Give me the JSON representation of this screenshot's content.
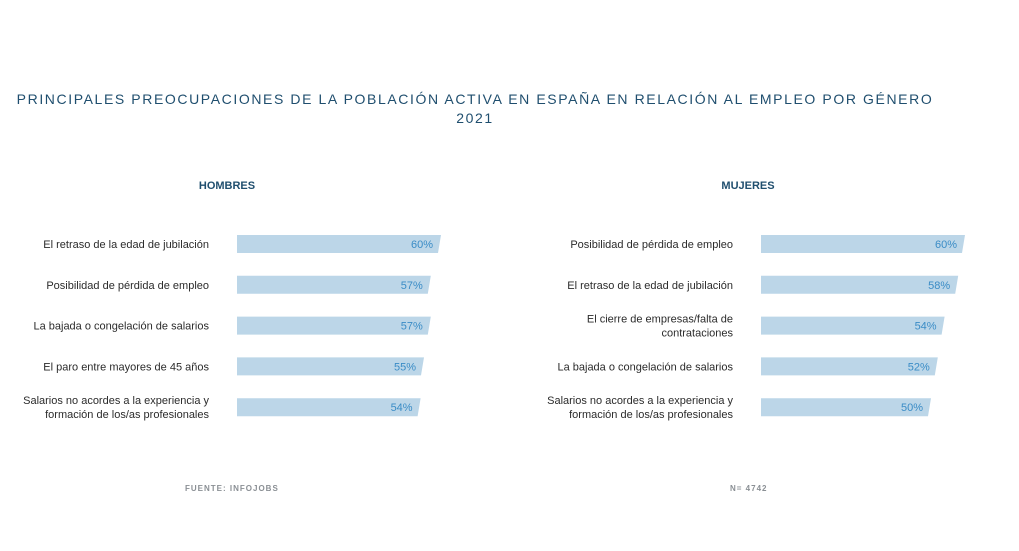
{
  "title_line1": "PRINCIPALES PREOCUPACIONES DE LA POBLACIÓN ACTIVA EN ESPAÑA EN RELACIÓN AL EMPLEO POR GÉNERO",
  "title_line2": "2021",
  "source": "FUENTE: INFOJOBS",
  "sample": "N= 4742",
  "colors": {
    "bar": "#bcd6e8",
    "value_text": "#3a8cc6",
    "title": "#1f4e6e"
  },
  "chart_data": [
    {
      "type": "bar",
      "orientation": "horizontal",
      "title": "HOMBRES",
      "categories": [
        [
          "El retraso de la edad de jubilación"
        ],
        [
          "Posibilidad de pérdida de empleo"
        ],
        [
          "La bajada o congelación de salarios"
        ],
        [
          "El paro entre mayores de 45 años"
        ],
        [
          "Salarios no acordes a la experiencia y",
          "formación de los/as profesionales"
        ]
      ],
      "values": [
        60,
        57,
        57,
        55,
        54
      ],
      "value_labels": [
        "60%",
        "57%",
        "57%",
        "55%",
        "54%"
      ],
      "unit": "%"
    },
    {
      "type": "bar",
      "orientation": "horizontal",
      "title": "MUJERES",
      "categories": [
        [
          "Posibilidad de pérdida de empleo"
        ],
        [
          "El retraso de la edad de jubilación"
        ],
        [
          "El cierre de empresas/falta de",
          "contrataciones"
        ],
        [
          "La bajada o congelación de salarios"
        ],
        [
          "Salarios no acordes a la experiencia y",
          "formación de los/as profesionales"
        ]
      ],
      "values": [
        60,
        58,
        54,
        52,
        50
      ],
      "value_labels": [
        "60%",
        "58%",
        "54%",
        "52%",
        "50%"
      ],
      "unit": "%"
    }
  ]
}
